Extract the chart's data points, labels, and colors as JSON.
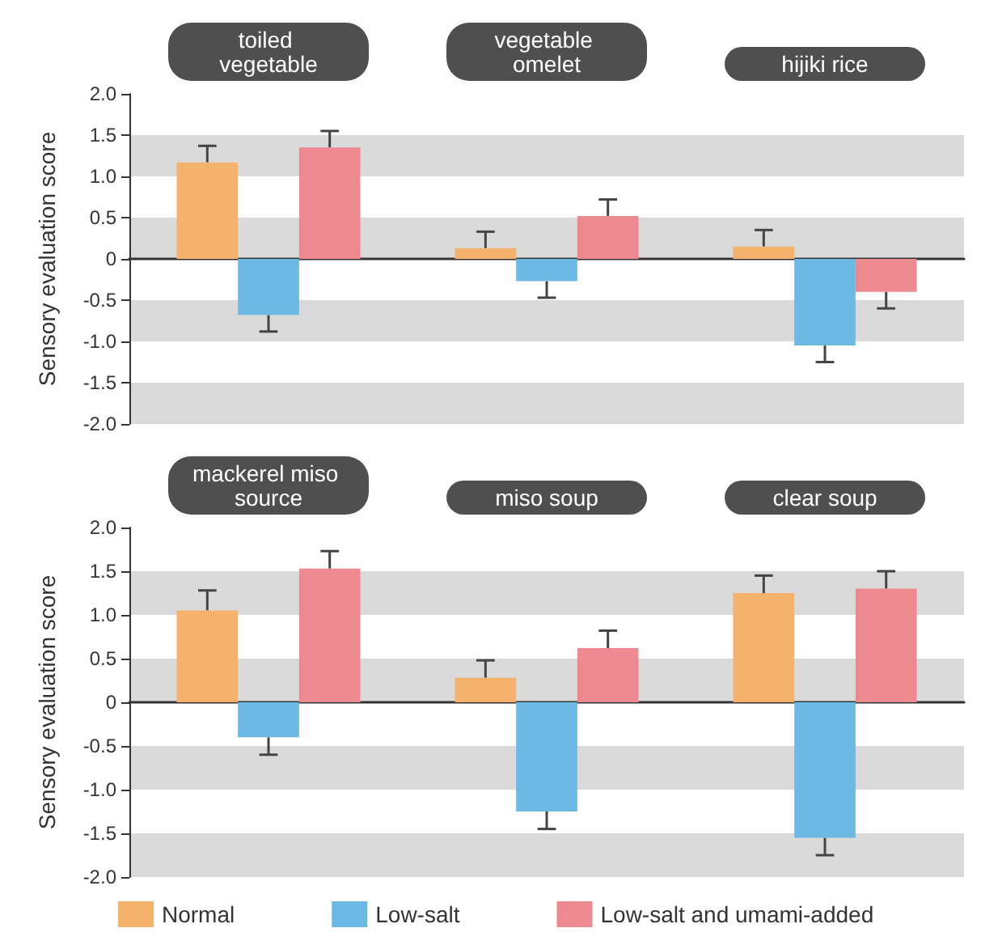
{
  "chart_data": [
    {
      "type": "bar",
      "ylabel": "Sensory evaluation score",
      "categories": [
        "toiled vegetable",
        "vegetable omelet",
        "hijiki rice"
      ],
      "series": [
        {
          "color": "#f4b26c",
          "values": [
            1.17,
            0.13,
            0.15
          ],
          "errors": [
            0.2,
            0.2,
            0.2
          ]
        },
        {
          "color": "#6cb9e6",
          "values": [
            -0.68,
            -0.27,
            -1.05
          ],
          "errors": [
            0.2,
            0.2,
            0.2
          ]
        },
        {
          "color": "#ec8a8f",
          "values": [
            1.35,
            0.52,
            -0.4
          ],
          "errors": [
            0.2,
            0.2,
            0.2
          ]
        }
      ],
      "ylim": [
        -2,
        2
      ],
      "yticks": [
        {
          "value": -2,
          "label": "-2.0"
        },
        {
          "value": -1.5,
          "label": "-1.5"
        },
        {
          "value": -1,
          "label": "-1.0"
        },
        {
          "value": -0.5,
          "label": "-0.5"
        },
        0,
        {
          "value": 0.5,
          "label": "0.5"
        },
        {
          "value": 1,
          "label": "1.0"
        },
        {
          "value": 1.5,
          "label": "1.5"
        },
        {
          "value": 2,
          "label": "2.0"
        }
      ],
      "bands": [
        {
          "axis": "y",
          "from": 1,
          "to": 1.5,
          "color": "#dadada"
        },
        {
          "axis": "y",
          "from": 0,
          "to": 0.5,
          "color": "#dadada"
        },
        {
          "axis": "y",
          "from": -1,
          "to": -0.5,
          "color": "#dadada"
        },
        {
          "axis": "y",
          "from": -2,
          "to": -1.5,
          "color": "#dadada"
        }
      ],
      "legend": false
    },
    {
      "type": "bar",
      "ylabel": "Sensory evaluation score",
      "categories": [
        "mackerel miso source",
        "miso soup",
        "clear soup"
      ],
      "series": [
        {
          "name": "Normal",
          "color": "#f4b26c",
          "values": [
            1.05,
            0.28,
            1.25
          ],
          "errors": [
            0.23,
            0.2,
            0.2
          ]
        },
        {
          "name": "Low-salt",
          "color": "#6cb9e6",
          "values": [
            -0.4,
            -1.25,
            -1.55
          ],
          "errors": [
            0.2,
            0.2,
            0.2
          ]
        },
        {
          "name": "Low-salt and umami-added",
          "color": "#ec8a8f",
          "values": [
            1.53,
            0.62,
            1.3
          ],
          "errors": [
            0.2,
            0.2,
            0.2
          ]
        }
      ],
      "ylim": [
        -2,
        2
      ],
      "yticks": [
        {
          "value": -2,
          "label": "-2.0"
        },
        {
          "value": -1.5,
          "label": "-1.5"
        },
        {
          "value": -1,
          "label": "-1.0"
        },
        {
          "value": -0.5,
          "label": "-0.5"
        },
        0,
        {
          "value": 0.5,
          "label": "0.5"
        },
        {
          "value": 1,
          "label": "1.0"
        },
        {
          "value": 1.5,
          "label": "1.5"
        },
        {
          "value": 2,
          "label": "2.0"
        }
      ],
      "bands": [
        {
          "axis": "y",
          "from": 1,
          "to": 1.5,
          "color": "#dadada"
        },
        {
          "axis": "y",
          "from": 0,
          "to": 0.5,
          "color": "#dadada"
        },
        {
          "axis": "y",
          "from": -1,
          "to": -0.5,
          "color": "#dadada"
        },
        {
          "axis": "y",
          "from": -2,
          "to": -1.5,
          "color": "#dadada"
        }
      ],
      "legend": "bottom"
    }
  ]
}
